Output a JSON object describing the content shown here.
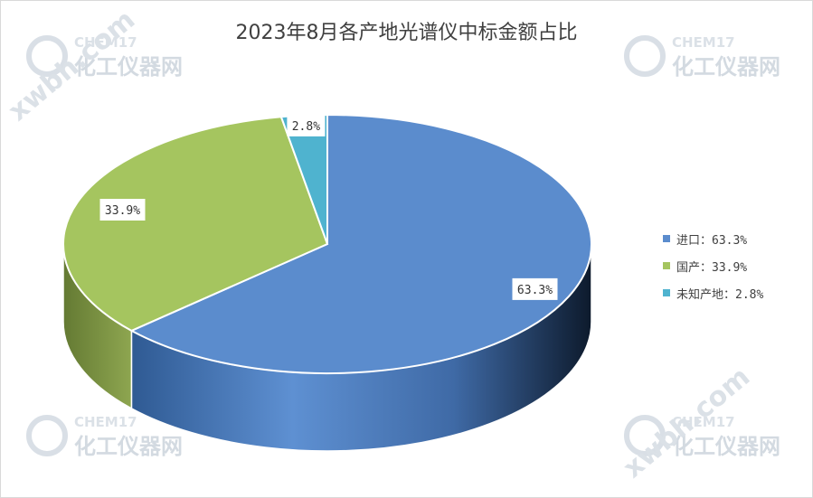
{
  "watermark": {
    "brand": "CHEM17",
    "name_cn": "化工仪器网",
    "domain": "xwbh.com"
  },
  "chart_data": {
    "type": "pie",
    "title": "2023年8月各产地光谱仪中标金额占比",
    "legend_position": "right",
    "series": [
      {
        "name": "进口",
        "value": 63.3,
        "label": "63.3%",
        "legend": "进口：63.3%",
        "color": "#5b8ccd"
      },
      {
        "name": "国产",
        "value": 33.9,
        "label": "33.9%",
        "legend": "国产：33.9%",
        "color": "#a5c55f"
      },
      {
        "name": "未知产地",
        "value": 2.8,
        "label": "2.8%",
        "legend": "未知产地：2.8%",
        "color": "#4fb3cf"
      }
    ]
  }
}
